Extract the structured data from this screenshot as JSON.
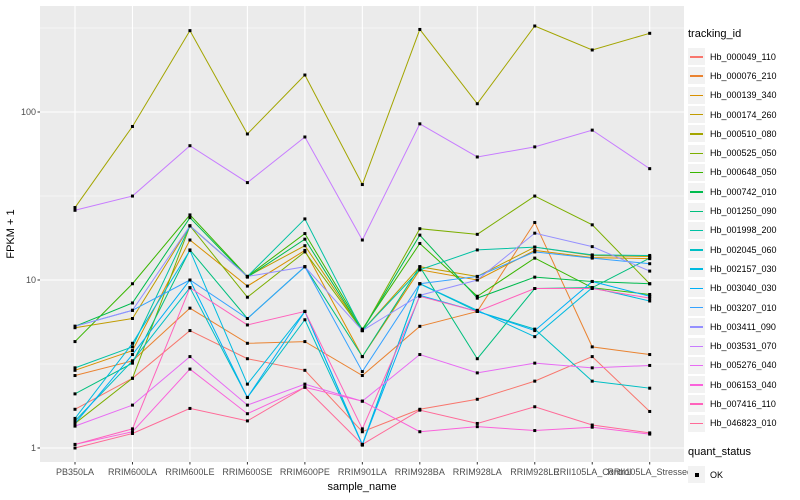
{
  "chart_data": {
    "type": "line",
    "ylabel": "FPKM + 1",
    "xlabel": "sample_name",
    "y_scale": "log10",
    "y_ticks": [
      1,
      10,
      100
    ],
    "grid": "on",
    "panel_color": "#EBEBEB",
    "gridline_color": "#FFFFFF",
    "axis_text_color": "#4D4D4D",
    "marker": "black-square",
    "legend_title": "tracking_id",
    "quant_legend": {
      "title": "quant_status",
      "items": [
        "OK"
      ]
    },
    "categories": [
      "PB350LA",
      "RRIM600LA",
      "RRIM600LE",
      "RRIM600SE",
      "RRIM600PE",
      "RRIM901LA",
      "RRIM928BA",
      "RRIM928LA",
      "RRIM928LE",
      "RRII105LA_Control",
      "RRII105LA_Stressed"
    ],
    "series": [
      {
        "name": "Hb_000049_110",
        "color": "#F8766D",
        "values": [
          1.7,
          2.6,
          5.0,
          3.4,
          2.9,
          1.25,
          1.7,
          1.95,
          2.5,
          3.5,
          1.65
        ]
      },
      {
        "name": "Hb_000076_210",
        "color": "#EA8331",
        "values": [
          2.7,
          3.3,
          6.8,
          4.2,
          4.3,
          2.7,
          5.3,
          6.5,
          22.0,
          4.0,
          3.6
        ]
      },
      {
        "name": "Hb_000139_340",
        "color": "#D89000",
        "values": [
          2.9,
          3.8,
          17.3,
          9.2,
          15.0,
          3.5,
          11.5,
          10.0,
          15.0,
          13.6,
          13.4
        ]
      },
      {
        "name": "Hb_000174_260",
        "color": "#C09B00",
        "values": [
          5.2,
          5.9,
          21.0,
          10.5,
          16.0,
          5.0,
          12.0,
          10.5,
          15.7,
          14.0,
          13.8
        ]
      },
      {
        "name": "Hb_000510_080",
        "color": "#A3A500",
        "values": [
          27,
          82,
          305,
          74,
          166,
          37,
          310,
          112,
          325,
          234,
          294
        ]
      },
      {
        "name": "Hb_000525_050",
        "color": "#7CAE00",
        "values": [
          1.4,
          2.6,
          21.0,
          7.9,
          14.7,
          5.0,
          20.2,
          18.7,
          31.6,
          21.3,
          9.5
        ]
      },
      {
        "name": "Hb_000648_050",
        "color": "#39B600",
        "values": [
          4.3,
          9.5,
          24.4,
          10.5,
          18.9,
          5.1,
          16.5,
          8.0,
          13.5,
          9.0,
          8.2
        ]
      },
      {
        "name": "Hb_000742_010",
        "color": "#00BB4E",
        "values": [
          5.3,
          7.3,
          23.5,
          10.4,
          17.5,
          5.0,
          18.5,
          7.8,
          10.4,
          9.8,
          9.5
        ]
      },
      {
        "name": "Hb_001250_090",
        "color": "#00BF7D",
        "values": [
          2.1,
          3.2,
          15.1,
          5.9,
          12.0,
          3.5,
          12.0,
          3.4,
          8.9,
          9.0,
          13.5
        ]
      },
      {
        "name": "Hb_001998_200",
        "color": "#00C1A3",
        "values": [
          3.0,
          4.0,
          21.0,
          10.5,
          23.1,
          5.0,
          11.5,
          15.1,
          15.7,
          14.1,
          14.0
        ]
      },
      {
        "name": "Hb_002045_060",
        "color": "#00BFC4",
        "values": [
          1.45,
          3.3,
          9.0,
          2.0,
          5.8,
          1.05,
          9.5,
          6.5,
          5.1,
          2.5,
          2.27
        ]
      },
      {
        "name": "Hb_002157_030",
        "color": "#00BAE0",
        "values": [
          1.5,
          4.2,
          15.0,
          2.4,
          6.5,
          1.04,
          9.5,
          6.6,
          4.6,
          9.0,
          7.5
        ]
      },
      {
        "name": "Hb_003040_030",
        "color": "#00B0F6",
        "values": [
          1.4,
          3.6,
          10.0,
          2.0,
          6.5,
          1.05,
          8.1,
          6.5,
          5.0,
          9.8,
          8.0
        ]
      },
      {
        "name": "Hb_003207_010",
        "color": "#35A2FF",
        "values": [
          5.3,
          6.6,
          10.0,
          5.9,
          12.0,
          2.85,
          9.5,
          10.5,
          14.7,
          13.5,
          12.5
        ]
      },
      {
        "name": "Hb_003411_090",
        "color": "#9590FF",
        "values": [
          5.3,
          6.6,
          21.0,
          10.5,
          12.0,
          5.0,
          8.1,
          10.0,
          19.0,
          15.8,
          11.3
        ]
      },
      {
        "name": "Hb_003531_070",
        "color": "#C77CFF",
        "values": [
          26,
          31.6,
          63,
          38,
          71,
          17.3,
          85,
          54,
          62,
          78,
          46
        ]
      },
      {
        "name": "Hb_005276_040",
        "color": "#E76BF3",
        "values": [
          1.35,
          1.8,
          3.5,
          1.8,
          2.4,
          1.9,
          3.6,
          2.8,
          3.2,
          3.0,
          3.1
        ]
      },
      {
        "name": "Hb_006153_040",
        "color": "#FA62DB",
        "values": [
          1.05,
          1.25,
          2.95,
          1.6,
          2.3,
          1.9,
          1.25,
          1.34,
          1.27,
          1.33,
          1.21
        ]
      },
      {
        "name": "Hb_007416_110",
        "color": "#FF62BC",
        "values": [
          1.05,
          1.3,
          9.0,
          5.4,
          6.5,
          1.3,
          8.0,
          6.5,
          8.9,
          8.9,
          7.8
        ]
      },
      {
        "name": "Hb_046823_010",
        "color": "#FF6A98",
        "values": [
          1.0,
          1.22,
          1.72,
          1.45,
          2.3,
          1.05,
          1.68,
          1.4,
          1.76,
          1.37,
          1.23
        ]
      }
    ]
  }
}
